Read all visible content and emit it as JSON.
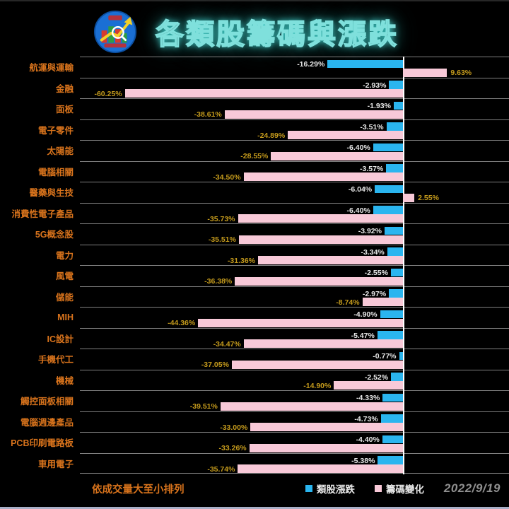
{
  "header": {
    "title": "各類股籌碼與漲跌",
    "logo_name": "stock-chart-logo"
  },
  "chart_data": {
    "type": "bar",
    "orientation": "horizontal",
    "title": "各類股籌碼與漲跌",
    "sort_note": "依成交量大至小排列",
    "xlim": [
      -70,
      20
    ],
    "grid": "row-separators",
    "legend_position": "bottom-right",
    "value_label_suffix": "%",
    "categories": [
      "航運與運輸",
      "金融",
      "面板",
      "電子零件",
      "太陽能",
      "電腦相關",
      "醫藥與生技",
      "消費性電子產品",
      "5G概念股",
      "電力",
      "風電",
      "儲能",
      "MIH",
      "IC設計",
      "手機代工",
      "機械",
      "觸控面板相關",
      "電腦週邊產品",
      "PCB印刷電路板",
      "車用電子"
    ],
    "series": [
      {
        "name": "類股漲跌",
        "color": "#2ab5ef",
        "values": [
          -16.29,
          -2.93,
          -1.93,
          -3.51,
          -6.4,
          -3.57,
          -6.04,
          -6.4,
          -3.92,
          -3.34,
          -2.55,
          -2.97,
          -4.9,
          -5.47,
          -0.77,
          -2.52,
          -4.33,
          -4.73,
          -4.4,
          -5.38
        ]
      },
      {
        "name": "籌碼變化",
        "color": "#f8c9d8",
        "values": [
          9.63,
          -60.25,
          -38.61,
          -24.89,
          -28.55,
          -34.5,
          2.55,
          -35.73,
          -35.51,
          -31.36,
          -36.38,
          -8.74,
          -44.36,
          -34.47,
          -37.05,
          -14.9,
          -39.51,
          -33.0,
          -33.26,
          -35.74
        ]
      }
    ]
  },
  "footer": {
    "note": "依成交量大至小排列",
    "legend": [
      {
        "label": "類股漲跌",
        "color": "#2ab5ef"
      },
      {
        "label": "籌碼變化",
        "color": "#f8c9d8"
      }
    ],
    "date": "2022/9/19"
  },
  "colors": {
    "background": "#000000",
    "category_label": "#d8731c",
    "blue_value_label": "#e9e9e9",
    "pink_value_label": "#c49a1c",
    "axis": "#ffffff",
    "gridline": "#969696",
    "title_glow": "#46e1dc",
    "bottom_strip": "#a9afc7"
  }
}
